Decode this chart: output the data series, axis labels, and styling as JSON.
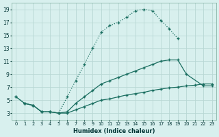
{
  "xlabel": "Humidex (Indice chaleur)",
  "background_color": "#d8f0ee",
  "grid_color": "#b8d8d4",
  "line_color": "#1a6e60",
  "xlim": [
    -0.5,
    23.5
  ],
  "ylim": [
    2.0,
    20.0
  ],
  "xticks": [
    0,
    1,
    2,
    3,
    4,
    5,
    6,
    7,
    8,
    9,
    10,
    11,
    12,
    13,
    14,
    15,
    16,
    17,
    18,
    19,
    20,
    21,
    22,
    23
  ],
  "yticks": [
    3,
    5,
    7,
    9,
    11,
    13,
    15,
    17,
    19
  ],
  "curve1_x": [
    0,
    1,
    2,
    3,
    4,
    5,
    6,
    7,
    8,
    9,
    10,
    11,
    12,
    13,
    14,
    15,
    16,
    17,
    18,
    19
  ],
  "curve1_y": [
    5.5,
    4.5,
    4.2,
    3.2,
    3.2,
    3.0,
    5.5,
    8.0,
    10.5,
    13.0,
    15.5,
    16.5,
    17.0,
    17.8,
    18.8,
    19.0,
    18.8,
    17.3,
    16.0,
    14.5
  ],
  "curve2_x": [
    0,
    1,
    2,
    3,
    4,
    5,
    6,
    7,
    8,
    9,
    10,
    11,
    12,
    13,
    14,
    15,
    16,
    17,
    18,
    19,
    20,
    22,
    23
  ],
  "curve2_y": [
    5.5,
    4.5,
    4.2,
    3.2,
    3.2,
    3.0,
    3.2,
    4.5,
    5.5,
    6.5,
    7.5,
    8.0,
    8.5,
    9.0,
    9.5,
    10.0,
    10.5,
    11.0,
    11.2,
    11.2,
    9.0,
    7.2,
    7.2
  ],
  "curve3_x": [
    1,
    2,
    3,
    4,
    5,
    6,
    7,
    8,
    9,
    10,
    11,
    12,
    13,
    14,
    15,
    16,
    17,
    18,
    19,
    20,
    21,
    22,
    23
  ],
  "curve3_y": [
    4.5,
    4.2,
    3.2,
    3.2,
    3.0,
    3.0,
    3.5,
    4.0,
    4.5,
    5.0,
    5.2,
    5.5,
    5.8,
    6.0,
    6.2,
    6.5,
    6.7,
    6.9,
    7.0,
    7.2,
    7.3,
    7.5,
    7.5
  ]
}
